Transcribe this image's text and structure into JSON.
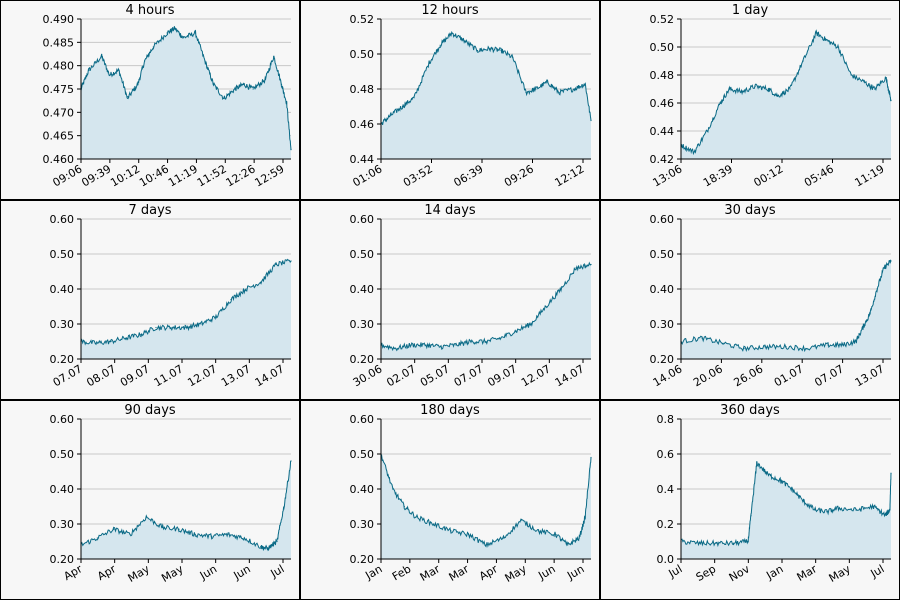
{
  "colors": {
    "line": "#0a6a86",
    "fill": "#d5e6ee",
    "grid": "#c8c8c8",
    "background": "#f7f7f7"
  },
  "chart_data": [
    {
      "type": "area",
      "title": "4 hours",
      "xlabel": "",
      "ylabel": "",
      "ylim": [
        0.46,
        0.49
      ],
      "grid": true,
      "yticks": [
        "0.460",
        "0.465",
        "0.470",
        "0.475",
        "0.480",
        "0.485",
        "0.490"
      ],
      "xticks": [
        "09:06",
        "09:39",
        "10:12",
        "10:46",
        "11:19",
        "11:52",
        "12:26",
        "12:59"
      ],
      "x_start": "09:06",
      "x_end": "13:10",
      "series": [
        {
          "x": [
            "09:06",
            "09:15",
            "09:30",
            "09:39",
            "09:50",
            "10:00",
            "10:12",
            "10:20",
            "10:30",
            "10:46",
            "10:55",
            "11:05",
            "11:19",
            "11:30",
            "11:40",
            "11:52",
            "12:05",
            "12:15",
            "12:26",
            "12:40",
            "12:50",
            "12:59",
            "13:05",
            "13:10"
          ],
          "values": [
            0.475,
            0.479,
            0.482,
            0.478,
            0.479,
            0.473,
            0.476,
            0.481,
            0.484,
            0.487,
            0.488,
            0.486,
            0.487,
            0.481,
            0.476,
            0.473,
            0.475,
            0.476,
            0.475,
            0.477,
            0.482,
            0.476,
            0.472,
            0.462
          ]
        }
      ]
    },
    {
      "type": "area",
      "title": "12 hours",
      "xlabel": "",
      "ylabel": "",
      "ylim": [
        0.44,
        0.52
      ],
      "grid": true,
      "yticks": [
        "0.44",
        "0.46",
        "0.48",
        "0.50",
        "0.52"
      ],
      "xticks": [
        "01:06",
        "03:52",
        "06:39",
        "09:26",
        "12:12"
      ],
      "x_start": "01:06",
      "x_end": "13:10",
      "series": [
        {
          "x": [
            "01:06",
            "01:40",
            "02:20",
            "03:00",
            "03:52",
            "04:30",
            "05:10",
            "05:50",
            "06:39",
            "07:20",
            "08:00",
            "08:40",
            "09:26",
            "10:00",
            "10:40",
            "11:20",
            "12:12",
            "12:50",
            "13:10"
          ],
          "values": [
            0.46,
            0.465,
            0.47,
            0.475,
            0.495,
            0.505,
            0.512,
            0.508,
            0.502,
            0.503,
            0.502,
            0.498,
            0.478,
            0.48,
            0.484,
            0.478,
            0.48,
            0.483,
            0.462
          ]
        }
      ]
    },
    {
      "type": "area",
      "title": "1 day",
      "xlabel": "",
      "ylabel": "",
      "ylim": [
        0.42,
        0.52
      ],
      "grid": true,
      "yticks": [
        "0.42",
        "0.44",
        "0.46",
        "0.48",
        "0.50",
        "0.52"
      ],
      "xticks": [
        "13:06",
        "18:39",
        "00:12",
        "05:46",
        "11:19"
      ],
      "x_start": "13:06",
      "x_end": "13:10",
      "series": [
        {
          "x": [
            0,
            1.5,
            3,
            4.5,
            5.55,
            7,
            8.5,
            10,
            11.1,
            12.5,
            14,
            15.5,
            16.65,
            18,
            19.5,
            21,
            22.2,
            23.5,
            24.07
          ],
          "values": [
            0.43,
            0.425,
            0.44,
            0.46,
            0.47,
            0.468,
            0.472,
            0.47,
            0.465,
            0.47,
            0.49,
            0.51,
            0.505,
            0.5,
            0.48,
            0.475,
            0.47,
            0.478,
            0.462
          ]
        }
      ]
    },
    {
      "type": "area",
      "title": "7 days",
      "xlabel": "",
      "ylabel": "",
      "ylim": [
        0.2,
        0.6
      ],
      "grid": true,
      "yticks": [
        "0.20",
        "0.30",
        "0.40",
        "0.50",
        "0.60"
      ],
      "xticks": [
        "07.07",
        "08.07",
        "09.07",
        "11.07",
        "12.07",
        "13.07",
        "14.07"
      ],
      "x_start": "07.07",
      "x_end": "14.07",
      "series": [
        {
          "x": [
            0,
            0.5,
            1,
            1.5,
            2,
            2.5,
            3,
            3.5,
            4,
            4.5,
            5,
            5.5,
            6,
            6.5,
            7
          ],
          "values": [
            0.25,
            0.245,
            0.25,
            0.26,
            0.27,
            0.29,
            0.29,
            0.29,
            0.3,
            0.32,
            0.37,
            0.4,
            0.42,
            0.47,
            0.48
          ]
        }
      ]
    },
    {
      "type": "area",
      "title": "14 days",
      "xlabel": "",
      "ylabel": "",
      "ylim": [
        0.2,
        0.6
      ],
      "grid": true,
      "yticks": [
        "0.20",
        "0.30",
        "0.40",
        "0.50",
        "0.60"
      ],
      "xticks": [
        "30.06",
        "02.07",
        "05.07",
        "07.07",
        "09.07",
        "12.07",
        "14.07"
      ],
      "x_start": "30.06",
      "x_end": "14.07",
      "series": [
        {
          "x": [
            0,
            1,
            2,
            3,
            4,
            5,
            6,
            7,
            8,
            9,
            10,
            11,
            12,
            13,
            14
          ],
          "values": [
            0.24,
            0.23,
            0.24,
            0.24,
            0.235,
            0.24,
            0.25,
            0.25,
            0.26,
            0.28,
            0.3,
            0.35,
            0.4,
            0.46,
            0.47
          ]
        }
      ]
    },
    {
      "type": "area",
      "title": "30 days",
      "xlabel": "",
      "ylabel": "",
      "ylim": [
        0.2,
        0.6
      ],
      "grid": true,
      "yticks": [
        "0.20",
        "0.30",
        "0.40",
        "0.50",
        "0.60"
      ],
      "xticks": [
        "14.06",
        "20.06",
        "26.06",
        "01.07",
        "07.07",
        "13.07"
      ],
      "x_start": "14.06",
      "x_end": "14.07",
      "series": [
        {
          "x": [
            0,
            3,
            6,
            9,
            12,
            15,
            18,
            21,
            23,
            25,
            26,
            27,
            28,
            29,
            30
          ],
          "values": [
            0.25,
            0.26,
            0.245,
            0.23,
            0.235,
            0.235,
            0.23,
            0.24,
            0.24,
            0.25,
            0.29,
            0.33,
            0.4,
            0.46,
            0.48
          ]
        }
      ]
    },
    {
      "type": "area",
      "title": "90 days",
      "xlabel": "",
      "ylabel": "",
      "ylim": [
        0.2,
        0.6
      ],
      "grid": true,
      "yticks": [
        "0.20",
        "0.30",
        "0.40",
        "0.50",
        "0.60"
      ],
      "xticks": [
        "Apr",
        "Apr",
        "May",
        "May",
        "Jun",
        "Jun",
        "Jul"
      ],
      "x_start": "Apr",
      "x_end": "Jul",
      "series": [
        {
          "x": [
            0,
            7,
            14,
            21,
            28,
            35,
            42,
            49,
            56,
            63,
            70,
            77,
            80,
            84,
            87,
            90
          ],
          "values": [
            0.24,
            0.26,
            0.285,
            0.27,
            0.32,
            0.29,
            0.285,
            0.27,
            0.265,
            0.27,
            0.26,
            0.235,
            0.23,
            0.25,
            0.35,
            0.48
          ]
        }
      ]
    },
    {
      "type": "area",
      "title": "180 days",
      "xlabel": "",
      "ylabel": "",
      "ylim": [
        0.2,
        0.6
      ],
      "grid": true,
      "yticks": [
        "0.20",
        "0.30",
        "0.40",
        "0.50",
        "0.60"
      ],
      "xticks": [
        "Jan",
        "Feb",
        "Mar",
        "Mar",
        "Apr",
        "May",
        "Jun",
        "Jun"
      ],
      "x_start": "Jan",
      "x_end": "Jul",
      "series": [
        {
          "x": [
            0,
            10,
            20,
            30,
            45,
            60,
            75,
            90,
            105,
            120,
            135,
            150,
            160,
            170,
            175,
            180
          ],
          "values": [
            0.5,
            0.4,
            0.35,
            0.32,
            0.3,
            0.28,
            0.27,
            0.24,
            0.26,
            0.31,
            0.28,
            0.27,
            0.24,
            0.26,
            0.32,
            0.49
          ]
        }
      ]
    },
    {
      "type": "area",
      "title": "360 days",
      "xlabel": "",
      "ylabel": "",
      "ylim": [
        0.0,
        0.8
      ],
      "grid": true,
      "yticks": [
        "0.0",
        "0.2",
        "0.4",
        "0.6",
        "0.8"
      ],
      "xticks": [
        "Jul",
        "Sep",
        "Nov",
        "Jan",
        "Mar",
        "May",
        "Jul"
      ],
      "x_start": "Jul",
      "x_end": "Jul",
      "series": [
        {
          "x": [
            0,
            30,
            60,
            90,
            115,
            120,
            130,
            150,
            170,
            190,
            210,
            230,
            250,
            270,
            300,
            330,
            350,
            358,
            360
          ],
          "values": [
            0.1,
            0.09,
            0.09,
            0.09,
            0.1,
            0.25,
            0.55,
            0.48,
            0.45,
            0.4,
            0.33,
            0.28,
            0.27,
            0.29,
            0.28,
            0.3,
            0.25,
            0.28,
            0.49
          ]
        }
      ]
    }
  ]
}
